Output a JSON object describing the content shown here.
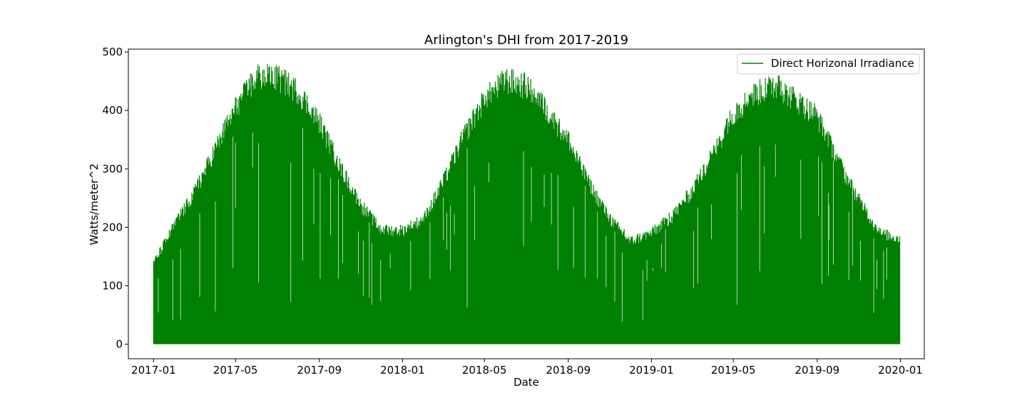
{
  "chart_data": {
    "type": "line",
    "title": "Arlington's DHI from 2017-2019",
    "xlabel": "Date",
    "ylabel": "Watts/meter^2",
    "xlim": [
      "2016-11-25",
      "2020-02-05"
    ],
    "ylim": [
      -25,
      505
    ],
    "x_ticks": [
      {
        "date": "2017-01-01",
        "label": "2017-01"
      },
      {
        "date": "2017-05-01",
        "label": "2017-05"
      },
      {
        "date": "2017-09-01",
        "label": "2017-09"
      },
      {
        "date": "2018-01-01",
        "label": "2018-01"
      },
      {
        "date": "2018-05-01",
        "label": "2018-05"
      },
      {
        "date": "2018-09-01",
        "label": "2018-09"
      },
      {
        "date": "2019-01-01",
        "label": "2019-01"
      },
      {
        "date": "2019-05-01",
        "label": "2019-05"
      },
      {
        "date": "2019-09-01",
        "label": "2019-09"
      },
      {
        "date": "2020-01-01",
        "label": "2020-01"
      }
    ],
    "y_ticks": [
      0,
      100,
      200,
      300,
      400,
      500
    ],
    "grid": false,
    "legend": {
      "position": "top-right"
    },
    "series": [
      {
        "name": "Direct Horizonal Irradiance",
        "color": "#008000",
        "x_start": "2017-01-01",
        "x_end": "2019-12-31",
        "daily_peak_envelope": [
          {
            "date": "2017-01-01",
            "value": 145
          },
          {
            "date": "2017-02-01",
            "value": 215
          },
          {
            "date": "2017-03-01",
            "value": 270
          },
          {
            "date": "2017-04-01",
            "value": 350
          },
          {
            "date": "2017-05-01",
            "value": 425
          },
          {
            "date": "2017-06-01",
            "value": 480
          },
          {
            "date": "2017-07-01",
            "value": 480
          },
          {
            "date": "2017-08-01",
            "value": 455
          },
          {
            "date": "2017-09-01",
            "value": 400
          },
          {
            "date": "2017-10-01",
            "value": 320
          },
          {
            "date": "2017-11-01",
            "value": 250
          },
          {
            "date": "2017-12-01",
            "value": 205
          },
          {
            "date": "2018-01-01",
            "value": 205
          },
          {
            "date": "2018-02-01",
            "value": 225
          },
          {
            "date": "2018-03-01",
            "value": 290
          },
          {
            "date": "2018-04-01",
            "value": 375
          },
          {
            "date": "2018-05-01",
            "value": 440
          },
          {
            "date": "2018-06-01",
            "value": 475
          },
          {
            "date": "2018-07-01",
            "value": 465
          },
          {
            "date": "2018-08-01",
            "value": 420
          },
          {
            "date": "2018-09-01",
            "value": 365
          },
          {
            "date": "2018-10-01",
            "value": 290
          },
          {
            "date": "2018-11-01",
            "value": 225
          },
          {
            "date": "2018-12-01",
            "value": 185
          },
          {
            "date": "2019-01-01",
            "value": 200
          },
          {
            "date": "2019-02-01",
            "value": 230
          },
          {
            "date": "2019-03-01",
            "value": 275
          },
          {
            "date": "2019-04-01",
            "value": 340
          },
          {
            "date": "2019-05-01",
            "value": 415
          },
          {
            "date": "2019-06-01",
            "value": 450
          },
          {
            "date": "2019-07-01",
            "value": 465
          },
          {
            "date": "2019-08-01",
            "value": 440
          },
          {
            "date": "2019-09-01",
            "value": 410
          },
          {
            "date": "2019-10-01",
            "value": 330
          },
          {
            "date": "2019-11-01",
            "value": 260
          },
          {
            "date": "2019-12-01",
            "value": 200
          },
          {
            "date": "2019-12-31",
            "value": 190
          }
        ]
      }
    ]
  }
}
